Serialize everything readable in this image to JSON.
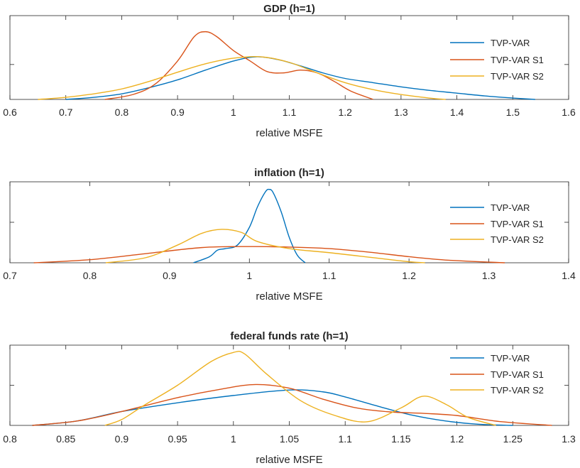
{
  "chart_data": [
    {
      "type": "line",
      "title": "GDP (h=1)",
      "xlabel": "relative MSFE",
      "ylabel": "",
      "xlim": [
        0.6,
        1.6
      ],
      "ylim": [
        0,
        1.2
      ],
      "xticks": [
        0.6,
        0.7,
        0.8,
        0.9,
        1,
        1.1,
        1.2,
        1.3,
        1.4,
        1.5,
        1.6
      ],
      "xtick_labels": [
        "0.6",
        "0.7",
        "0.8",
        "0.9",
        "1",
        "1.1",
        "1.2",
        "1.3",
        "1.4",
        "1.5",
        "1.6"
      ],
      "yticks": [
        0.5
      ],
      "legend": "top-right",
      "series": [
        {
          "name": "TVP-VAR",
          "color": "#0072BD",
          "x": [
            0.7,
            0.75,
            0.8,
            0.85,
            0.9,
            0.95,
            1.0,
            1.04,
            1.08,
            1.12,
            1.16,
            1.2,
            1.25,
            1.3,
            1.35,
            1.4,
            1.45,
            1.5,
            1.54
          ],
          "y": [
            0.0,
            0.03,
            0.08,
            0.17,
            0.28,
            0.42,
            0.55,
            0.61,
            0.57,
            0.48,
            0.38,
            0.3,
            0.24,
            0.18,
            0.13,
            0.09,
            0.05,
            0.02,
            0.0
          ]
        },
        {
          "name": "TVP-VAR S1",
          "color": "#D95319",
          "x": [
            0.77,
            0.82,
            0.86,
            0.9,
            0.93,
            0.95,
            0.97,
            1.0,
            1.03,
            1.06,
            1.09,
            1.12,
            1.15,
            1.18,
            1.21,
            1.25
          ],
          "y": [
            0.0,
            0.07,
            0.22,
            0.55,
            0.9,
            0.97,
            0.9,
            0.7,
            0.55,
            0.4,
            0.38,
            0.42,
            0.38,
            0.26,
            0.12,
            0.0
          ]
        },
        {
          "name": "TVP-VAR S2",
          "color": "#EDB120",
          "x": [
            0.65,
            0.7,
            0.75,
            0.8,
            0.85,
            0.9,
            0.95,
            1.0,
            1.05,
            1.1,
            1.15,
            1.2,
            1.25,
            1.3,
            1.35,
            1.38
          ],
          "y": [
            0.0,
            0.03,
            0.08,
            0.15,
            0.26,
            0.39,
            0.51,
            0.59,
            0.61,
            0.53,
            0.38,
            0.24,
            0.14,
            0.07,
            0.02,
            0.0
          ]
        }
      ]
    },
    {
      "type": "line",
      "title": "inflation (h=1)",
      "xlabel": "relative MSFE",
      "ylabel": "",
      "xlim": [
        0.7,
        1.4
      ],
      "ylim": [
        0,
        1.6
      ],
      "xticks": [
        0.7,
        0.8,
        0.9,
        1,
        1.1,
        1.2,
        1.3,
        1.4
      ],
      "xtick_labels": [
        "0.7",
        "0.8",
        "0.9",
        "1",
        "1.1",
        "1.2",
        "1.3",
        "1.4"
      ],
      "yticks": [
        0.8
      ],
      "legend": "top-right",
      "series": [
        {
          "name": "TVP-VAR",
          "color": "#0072BD",
          "x": [
            0.93,
            0.95,
            0.96,
            0.97,
            0.985,
            1.0,
            1.01,
            1.02,
            1.025,
            1.03,
            1.04,
            1.05,
            1.06,
            1.07
          ],
          "y": [
            0.0,
            0.12,
            0.25,
            0.28,
            0.35,
            0.7,
            1.1,
            1.4,
            1.45,
            1.38,
            1.0,
            0.5,
            0.15,
            0.0
          ]
        },
        {
          "name": "TVP-VAR S1",
          "color": "#D95319",
          "x": [
            0.73,
            0.8,
            0.87,
            0.94,
            1.0,
            1.05,
            1.1,
            1.15,
            1.2,
            1.25,
            1.32
          ],
          "y": [
            0.0,
            0.06,
            0.18,
            0.3,
            0.32,
            0.31,
            0.28,
            0.21,
            0.12,
            0.05,
            0.0
          ]
        },
        {
          "name": "TVP-VAR S2",
          "color": "#EDB120",
          "x": [
            0.82,
            0.87,
            0.91,
            0.94,
            0.965,
            0.99,
            1.01,
            1.05,
            1.1,
            1.15,
            1.2,
            1.22
          ],
          "y": [
            0.0,
            0.1,
            0.35,
            0.58,
            0.66,
            0.6,
            0.42,
            0.28,
            0.2,
            0.11,
            0.02,
            0.0
          ]
        }
      ]
    },
    {
      "type": "line",
      "title": "federal funds rate (h=1)",
      "xlabel": "relative MSFE",
      "ylabel": "",
      "xlim": [
        0.8,
        1.3
      ],
      "ylim": [
        0,
        2.2
      ],
      "xticks": [
        0.8,
        0.85,
        0.9,
        0.95,
        1,
        1.05,
        1.1,
        1.15,
        1.2,
        1.25,
        1.3
      ],
      "xtick_labels": [
        "0.8",
        "0.85",
        "0.9",
        "0.95",
        "1",
        "1.05",
        "1.1",
        "1.15",
        "1.2",
        "1.25",
        "1.3"
      ],
      "yticks": [
        1.1
      ],
      "legend": "top-right",
      "series": [
        {
          "name": "TVP-VAR",
          "color": "#0072BD",
          "x": [
            0.82,
            0.86,
            0.9,
            0.95,
            1.0,
            1.05,
            1.08,
            1.1,
            1.13,
            1.16,
            1.19,
            1.22,
            1.25
          ],
          "y": [
            0.0,
            0.12,
            0.38,
            0.62,
            0.82,
            0.97,
            0.92,
            0.78,
            0.52,
            0.28,
            0.12,
            0.03,
            0.0
          ]
        },
        {
          "name": "TVP-VAR S1",
          "color": "#D95319",
          "x": [
            0.82,
            0.86,
            0.9,
            0.95,
            0.99,
            1.02,
            1.05,
            1.08,
            1.11,
            1.14,
            1.17,
            1.2,
            1.24,
            1.285
          ],
          "y": [
            0.0,
            0.12,
            0.38,
            0.76,
            1.0,
            1.12,
            1.02,
            0.72,
            0.48,
            0.37,
            0.33,
            0.27,
            0.1,
            0.0
          ]
        },
        {
          "name": "TVP-VAR S2",
          "color": "#EDB120",
          "x": [
            0.885,
            0.9,
            0.92,
            0.95,
            0.98,
            1.0,
            1.01,
            1.03,
            1.06,
            1.09,
            1.12,
            1.15,
            1.17,
            1.19,
            1.21,
            1.235
          ],
          "y": [
            0.0,
            0.16,
            0.55,
            1.1,
            1.75,
            2.0,
            1.96,
            1.4,
            0.68,
            0.28,
            0.1,
            0.48,
            0.8,
            0.58,
            0.22,
            0.0
          ]
        }
      ]
    }
  ]
}
